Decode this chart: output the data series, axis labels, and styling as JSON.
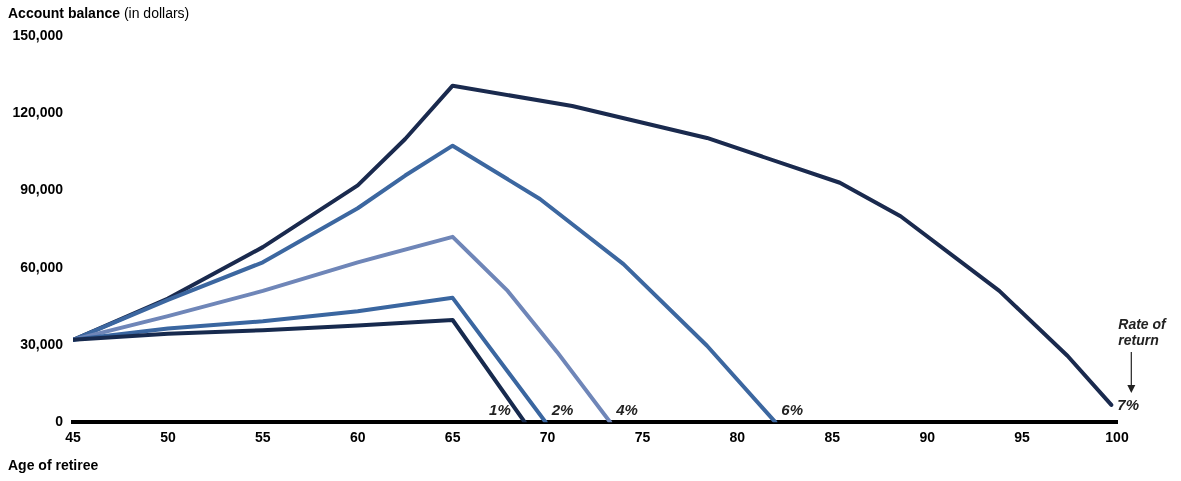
{
  "chart_data": {
    "type": "line",
    "ylabel": "Account balance (in dollars)",
    "xlabel": "Age of retiree",
    "xlim": [
      45,
      100
    ],
    "xticks": [
      45,
      50,
      55,
      60,
      65,
      70,
      75,
      80,
      85,
      90,
      95,
      100
    ],
    "ylim": [
      0,
      150000
    ],
    "yticks": [
      0,
      {
        "value": 30000,
        "label": "30,000"
      },
      {
        "value": 60000,
        "label": "60,000"
      },
      {
        "value": 90000,
        "label": "90,000"
      },
      {
        "value": 120000,
        "label": "120,000"
      },
      {
        "value": 150000,
        "label": "150,000"
      }
    ],
    "grid": false,
    "legend": false,
    "marker": "none",
    "line_style": "solid",
    "annotations": [
      "Rate of return"
    ],
    "series": [
      {
        "name": "1%",
        "color": "#172a4e",
        "x": [
          45,
          50,
          55,
          60,
          65,
          68.8
        ],
        "values": [
          32000,
          34400,
          35700,
          37600,
          39700,
          0
        ]
      },
      {
        "name": "2%",
        "color": "#3a66a0",
        "x": [
          45,
          50,
          55,
          60,
          65,
          69.9
        ],
        "values": [
          32000,
          36400,
          39200,
          43100,
          48300,
          0
        ]
      },
      {
        "name": "4%",
        "color": "#6f86b8",
        "x": [
          45,
          50,
          55,
          60,
          65,
          67.9,
          70.5,
          73.3
        ],
        "values": [
          32000,
          41200,
          51000,
          62100,
          72000,
          51000,
          27300,
          0
        ]
      },
      {
        "name": "6%",
        "color": "#3c67a0",
        "x": [
          45,
          50,
          55,
          60,
          62.5,
          65,
          69.6,
          74,
          78.4,
          82
        ],
        "values": [
          32000,
          47500,
          62100,
          83100,
          95800,
          107400,
          86700,
          61400,
          29700,
          0
        ]
      },
      {
        "name": "7%",
        "color": "#1a2a4e",
        "x": [
          45,
          50,
          55,
          60,
          62.5,
          65,
          71.3,
          78.4,
          85.4,
          88.6,
          93.8,
          97.4,
          99.7
        ],
        "values": [
          32000,
          48000,
          68000,
          92000,
          110000,
          130700,
          122800,
          110400,
          93000,
          80000,
          51000,
          25700,
          6700
        ]
      }
    ]
  }
}
